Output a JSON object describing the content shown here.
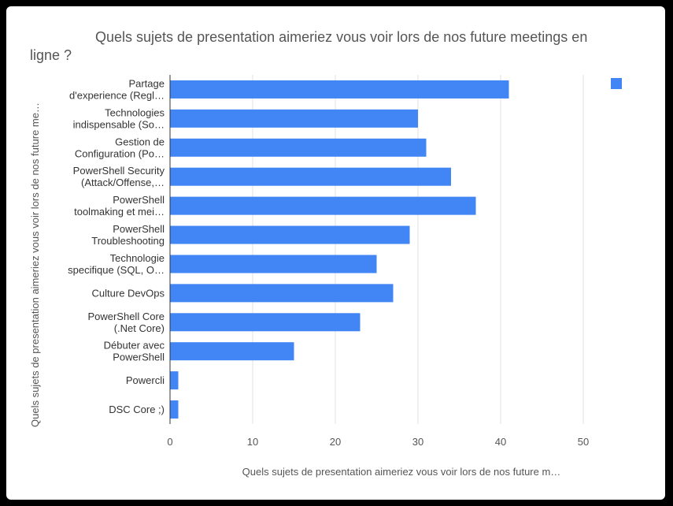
{
  "chart_data": {
    "type": "bar",
    "orientation": "horizontal",
    "title_lines": [
      "Quels sujets de presentation aimeriez vous voir lors de nos future meetings en",
      "ligne ?"
    ],
    "xlabel": "Quels sujets de presentation aimeriez vous voir lors de nos future m…",
    "ylabel": "Quels sujets de presentation aimeriez vous voir lors de nos future me…",
    "categories": [
      [
        "Partage",
        "d'experience (Regl…"
      ],
      [
        "Technologies",
        "indispensable (So…"
      ],
      [
        "Gestion de",
        "Configuration (Po…"
      ],
      [
        "PowerShell Security",
        "(Attack/Offense,…"
      ],
      [
        "PowerShell",
        "toolmaking et mei…"
      ],
      [
        "PowerShell",
        "Troubleshooting"
      ],
      [
        "Technologie",
        "specifique (SQL, O…"
      ],
      [
        "Culture DevOps"
      ],
      [
        "PowerShell Core",
        "(.Net Core)"
      ],
      [
        "Débuter avec",
        "PowerShell"
      ],
      [
        "Powercli"
      ],
      [
        "DSC Core ;)"
      ]
    ],
    "values": [
      41,
      30,
      31,
      34,
      37,
      29,
      25,
      27,
      23,
      15,
      1,
      1
    ],
    "xlim": [
      0,
      50
    ],
    "xticks": [
      "0",
      "10",
      "20",
      "30",
      "40",
      "50"
    ],
    "grid": true,
    "legend": "top-right",
    "colors": {
      "bar": "#4285f4",
      "grid": "#e0e0e0",
      "axis": "#333333"
    }
  }
}
